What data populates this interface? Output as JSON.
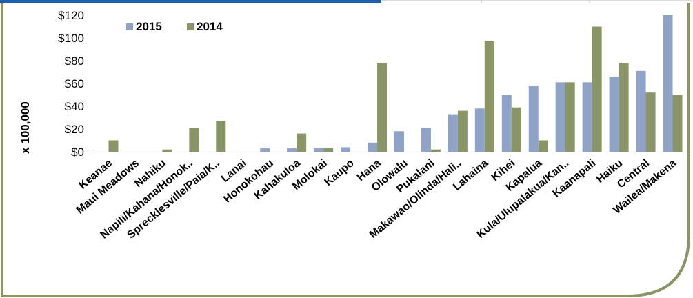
{
  "chart_data": {
    "type": "bar",
    "title": "",
    "xlabel": "",
    "ylabel": "x 100,000",
    "ylim": [
      0,
      120
    ],
    "yticks": [
      "$0",
      "$20",
      "$40",
      "$60",
      "$80",
      "$100",
      "$120"
    ],
    "grid": false,
    "legend_position": "top-left",
    "categories": [
      "Keanae",
      "Maui Meadows",
      "Nahiku",
      "Napili/Kahana/Honok..",
      "Sprecklesville/Paia/K..",
      "Lanai",
      "Honokohau",
      "Kahakuloa",
      "Molokai",
      "Kaupo",
      "Hana",
      "Olowalu",
      "Pukalani",
      "Makawao/Olinda/Hali..",
      "Lahaina",
      "Kihei",
      "Kapalua",
      "Kula/Ulupalakua/Kan..",
      "Kaanapali",
      "Haiku",
      "Central",
      "Wailea/Makena"
    ],
    "series": [
      {
        "name": "2015",
        "color": "#8fa3c8",
        "values": [
          0,
          0,
          0,
          0,
          0,
          0,
          3,
          3,
          3,
          4,
          8,
          18,
          21,
          33,
          38,
          50,
          58,
          61,
          61,
          66,
          71,
          120
        ]
      },
      {
        "name": "2014",
        "color": "#8a9566",
        "values": [
          10,
          0,
          2,
          21,
          27,
          0,
          0,
          16,
          3,
          0,
          78,
          0,
          2,
          36,
          97,
          39,
          10,
          61,
          110,
          78,
          52,
          50
        ]
      }
    ]
  }
}
